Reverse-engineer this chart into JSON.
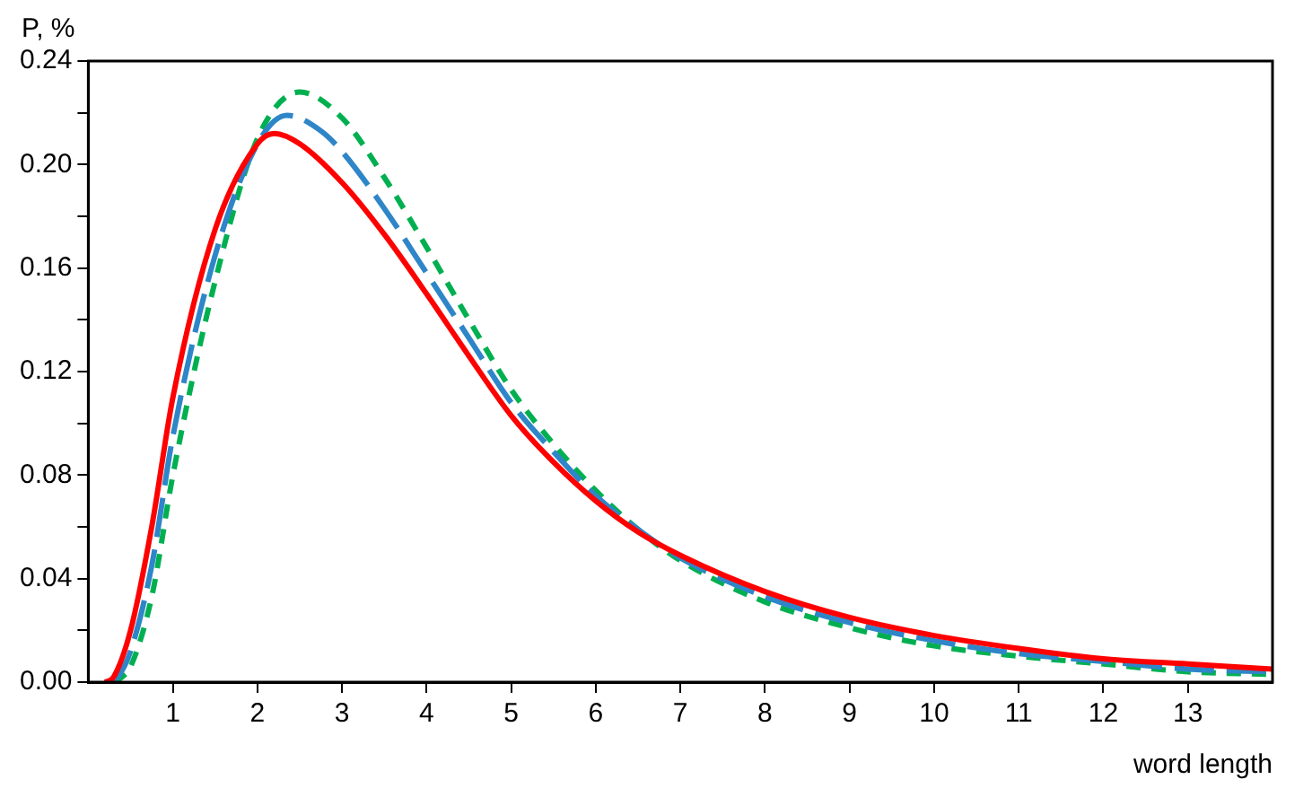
{
  "chart_data": {
    "type": "line",
    "ylabel": "P, %",
    "xlabel": "word length",
    "xlim": [
      0,
      14
    ],
    "ylim": [
      0,
      0.24
    ],
    "xticks": [
      1,
      2,
      3,
      4,
      5,
      6,
      7,
      8,
      9,
      10,
      11,
      12,
      13
    ],
    "yticks": [
      {
        "value": 0,
        "label": "0.00"
      },
      {
        "value": 0.02,
        "label": null
      },
      {
        "value": 0.04,
        "label": "0.04"
      },
      {
        "value": 0.06,
        "label": null
      },
      {
        "value": 0.08,
        "label": "0.08"
      },
      {
        "value": 0.1,
        "label": null
      },
      {
        "value": 0.12,
        "label": "0.12"
      },
      {
        "value": 0.14,
        "label": null
      },
      {
        "value": 0.16,
        "label": "0.16"
      },
      {
        "value": 0.18,
        "label": null
      },
      {
        "value": 0.2,
        "label": "0.20"
      },
      {
        "value": 0.22,
        "label": null
      },
      {
        "value": 0.24,
        "label": "0.24"
      }
    ],
    "grid": false,
    "legend": false,
    "marker": "none",
    "series": [
      {
        "color": "#ff0000",
        "line_style": "solid",
        "x": [
          0.2,
          0.3,
          0.5,
          0.75,
          1,
          1.5,
          2,
          2.2,
          2.5,
          3,
          3.5,
          4,
          4.5,
          5,
          5.5,
          6,
          6.5,
          7,
          8,
          9,
          10,
          11,
          12,
          13,
          14
        ],
        "values": [
          0,
          0.002,
          0.02,
          0.06,
          0.11,
          0.175,
          0.208,
          0.212,
          0.208,
          0.193,
          0.173,
          0.15,
          0.126,
          0.103,
          0.085,
          0.07,
          0.058,
          0.049,
          0.035,
          0.025,
          0.018,
          0.013,
          0.009,
          0.007,
          0.005
        ]
      },
      {
        "color": "#2e86c8",
        "line_style": "dashed",
        "x": [
          0.25,
          0.35,
          0.5,
          0.75,
          1,
          1.5,
          2,
          2.35,
          2.75,
          3,
          3.5,
          4,
          4.5,
          5,
          5.5,
          6,
          6.5,
          7,
          8,
          9,
          10,
          11,
          12,
          13,
          14
        ],
        "values": [
          0,
          0.002,
          0.012,
          0.045,
          0.095,
          0.165,
          0.208,
          0.219,
          0.213,
          0.205,
          0.183,
          0.158,
          0.133,
          0.108,
          0.089,
          0.072,
          0.059,
          0.048,
          0.033,
          0.023,
          0.016,
          0.011,
          0.008,
          0.005,
          0.004
        ]
      },
      {
        "color": "#00b050",
        "line_style": "dotted",
        "x": [
          0.3,
          0.4,
          0.5,
          0.75,
          1,
          1.5,
          2,
          2.5,
          3,
          3.5,
          4,
          4.5,
          5,
          5.5,
          6,
          6.5,
          7,
          8,
          9,
          10,
          11,
          12,
          13,
          14
        ],
        "values": [
          0,
          0.002,
          0.006,
          0.033,
          0.08,
          0.155,
          0.21,
          0.228,
          0.218,
          0.195,
          0.168,
          0.14,
          0.113,
          0.092,
          0.074,
          0.059,
          0.047,
          0.031,
          0.021,
          0.014,
          0.01,
          0.007,
          0.004,
          0.003
        ]
      }
    ]
  }
}
